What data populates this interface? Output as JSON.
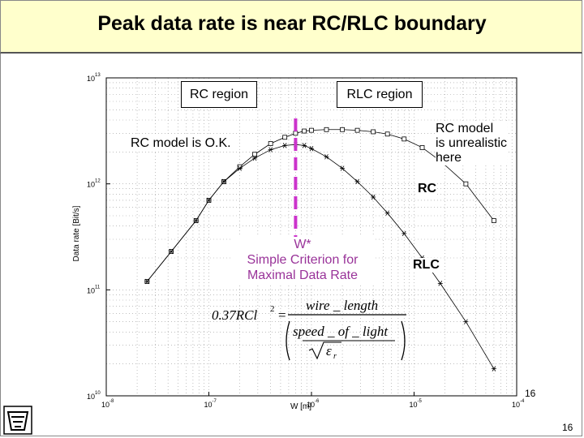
{
  "title": "Peak data rate is near RC/RLC boundary",
  "labels": {
    "rc_region": "RC region",
    "rlc_region": "RLC region",
    "rc_ok": "RC model is O.K.",
    "rc_unrealistic_1": "RC model",
    "rc_unrealistic_2": "is unrealistic",
    "rc_unrealistic_3": "here",
    "rc_curve": "RC",
    "rlc_curve": "RLC",
    "wstar_1": "W*",
    "wstar_2": "Simple Criterion for",
    "wstar_3": "Maximal Data Rate"
  },
  "formula": {
    "lhs": "0.37RCl",
    "exp": "2",
    "eq": "=",
    "num": "wire _ length",
    "den": "speed _ of _ light",
    "sqrt_eps": "ε",
    "eps_sub": "r"
  },
  "page_number_inner": "16",
  "page_number_outer": "16",
  "colors": {
    "accent": "#cc33cc",
    "title_bg": "#ffffcc",
    "annotation": "#993399"
  },
  "chart_data": {
    "type": "line",
    "xlabel": "W [m]",
    "ylabel": "Data rate [Bit/s]",
    "x_scale": "log",
    "y_scale": "log",
    "xlim": [
      1e-08,
      0.0001
    ],
    "ylim": [
      10000000000.0,
      10000000000000.0
    ],
    "x_ticks": [
      {
        "label": "10",
        "exp": "-8"
      },
      {
        "label": "10",
        "exp": "-7"
      },
      {
        "label": "10",
        "exp": "-6"
      },
      {
        "label": "10",
        "exp": "-5"
      },
      {
        "label": "10",
        "exp": "-4"
      }
    ],
    "y_ticks": [
      {
        "label": "10",
        "exp": "10"
      },
      {
        "label": "10",
        "exp": "11"
      },
      {
        "label": "10",
        "exp": "12"
      },
      {
        "label": "10",
        "exp": "13"
      }
    ],
    "grid": true,
    "w_star": 7e-07,
    "series": [
      {
        "name": "RC",
        "marker": "square",
        "x": [
          2.5e-08,
          4.3e-08,
          7.5e-08,
          1e-07,
          1.4e-07,
          2e-07,
          2.8e-07,
          4e-07,
          5.5e-07,
          7e-07,
          8.5e-07,
          1e-06,
          1.4e-06,
          2e-06,
          2.8e-06,
          4e-06,
          5.5e-06,
          8e-06,
          1.2e-05,
          1.8e-05,
          3.2e-05,
          6e-05
        ],
        "y": [
          120000000000.0,
          230000000000.0,
          450000000000.0,
          700000000000.0,
          1050000000000.0,
          1450000000000.0,
          1900000000000.0,
          2400000000000.0,
          2750000000000.0,
          3000000000000.0,
          3150000000000.0,
          3200000000000.0,
          3250000000000.0,
          3250000000000.0,
          3200000000000.0,
          3100000000000.0,
          2950000000000.0,
          2650000000000.0,
          2200000000000.0,
          1650000000000.0,
          1000000000000.0,
          450000000000.0
        ]
      },
      {
        "name": "RLC",
        "marker": "star",
        "x": [
          2.5e-08,
          4.3e-08,
          7.5e-08,
          1e-07,
          1.4e-07,
          2e-07,
          2.8e-07,
          4e-07,
          5.5e-07,
          7e-07,
          8.5e-07,
          1e-06,
          1.4e-06,
          2e-06,
          2.8e-06,
          4e-06,
          5.5e-06,
          8e-06,
          1.2e-05,
          1.8e-05,
          3.2e-05,
          6e-05
        ],
        "y": [
          120000000000.0,
          230000000000.0,
          450000000000.0,
          700000000000.0,
          1050000000000.0,
          1400000000000.0,
          1750000000000.0,
          2100000000000.0,
          2300000000000.0,
          2350000000000.0,
          2300000000000.0,
          2150000000000.0,
          1800000000000.0,
          1400000000000.0,
          1050000000000.0,
          750000000000.0,
          530000000000.0,
          340000000000.0,
          200000000000.0,
          115000000000.0,
          50000000000.0,
          18000000000.0
        ]
      }
    ]
  }
}
